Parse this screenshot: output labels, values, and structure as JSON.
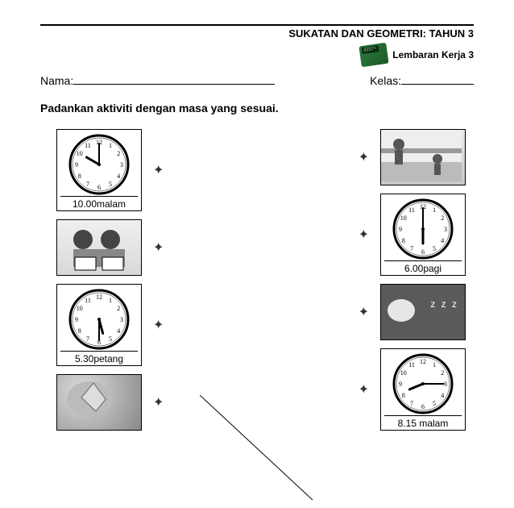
{
  "header": {
    "subject": "SUKATAN DAN GEOMETRI: TAHUN 3",
    "sheet_label": "Lembaran Kerja 3"
  },
  "fields": {
    "nama_label": "Nama:",
    "kelas_label": "Kelas:"
  },
  "instruction": "Padankan aktiviti dengan masa yang sesuai.",
  "left_items": [
    {
      "type": "clock",
      "caption": "10.00malam",
      "hour": 10,
      "minute": 0
    },
    {
      "type": "picture",
      "variant": "students"
    },
    {
      "type": "clock",
      "caption": "5.30petang",
      "hour": 5,
      "minute": 30
    },
    {
      "type": "picture",
      "variant": "washing"
    }
  ],
  "right_items": [
    {
      "type": "picture",
      "variant": "playground"
    },
    {
      "type": "clock",
      "caption": "6.00pagi",
      "hour": 6,
      "minute": 0
    },
    {
      "type": "picture",
      "variant": "sleeping"
    },
    {
      "type": "clock",
      "caption": "8.15 malam",
      "hour": 8,
      "minute": 15
    }
  ],
  "node_glyph": "✦",
  "colors": {
    "text": "#000000",
    "background": "#ffffff",
    "line": "#000000"
  }
}
